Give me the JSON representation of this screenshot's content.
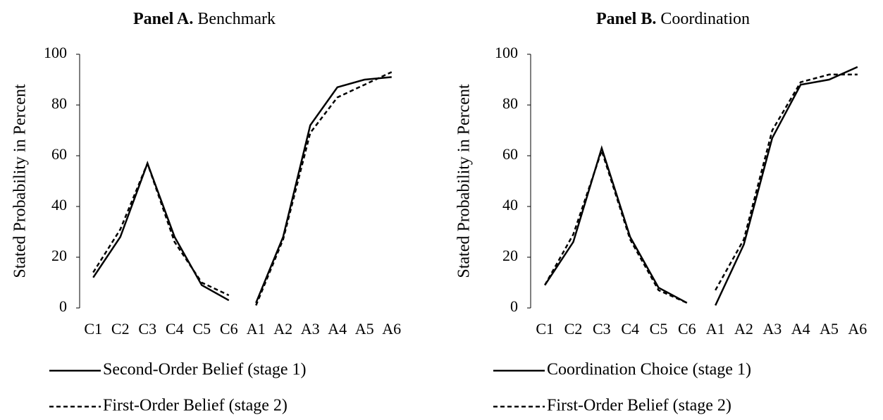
{
  "chart_data": [
    {
      "type": "line",
      "title_prefix": "Panel A.",
      "title": "Benchmark",
      "y_label": "Stated Probability in Percent",
      "categories": [
        [
          "C1",
          "C2",
          "C3",
          "C4",
          "C5",
          "C6"
        ],
        [
          "A1",
          "A2",
          "A3",
          "A4",
          "A5",
          "A6"
        ]
      ],
      "ylim": [
        0,
        100
      ],
      "yticks": [
        0,
        20,
        40,
        60,
        80,
        100
      ],
      "grid": false,
      "series": [
        {
          "name": "Second-Order Belief (stage 1)",
          "color": "#000000",
          "dash": "solid",
          "values": [
            [
              12,
              28,
              57,
              28,
              9,
              3
            ],
            [
              2,
              28,
              72,
              87,
              90,
              91
            ]
          ]
        },
        {
          "name": "First-Order Belief (stage 2)",
          "color": "#000000",
          "dash": "dashed",
          "values": [
            [
              14,
              31,
              57,
              26,
              10,
              5
            ],
            [
              1,
              27,
              69,
              83,
              88,
              93
            ]
          ]
        }
      ]
    },
    {
      "type": "line",
      "title_prefix": "Panel B.",
      "title": "Coordination",
      "y_label": "Stated Probability in Percent",
      "categories": [
        [
          "C1",
          "C2",
          "C3",
          "C4",
          "C5",
          "C6"
        ],
        [
          "A1",
          "A2",
          "A3",
          "A4",
          "A5",
          "A6"
        ]
      ],
      "ylim": [
        0,
        100
      ],
      "yticks": [
        0,
        20,
        40,
        60,
        80,
        100
      ],
      "grid": false,
      "series": [
        {
          "name": "Coordination Choice (stage 1)",
          "color": "#000000",
          "dash": "solid",
          "values": [
            [
              9,
              26,
              63,
              28,
              8,
              2
            ],
            [
              1,
              25,
              67,
              88,
              90,
              95
            ]
          ]
        },
        {
          "name": "First-Order Belief (stage 2)",
          "color": "#000000",
          "dash": "dashed",
          "values": [
            [
              9,
              29,
              62,
              27,
              7,
              2
            ],
            [
              7,
              27,
              70,
              89,
              92,
              92
            ]
          ]
        }
      ]
    }
  ]
}
